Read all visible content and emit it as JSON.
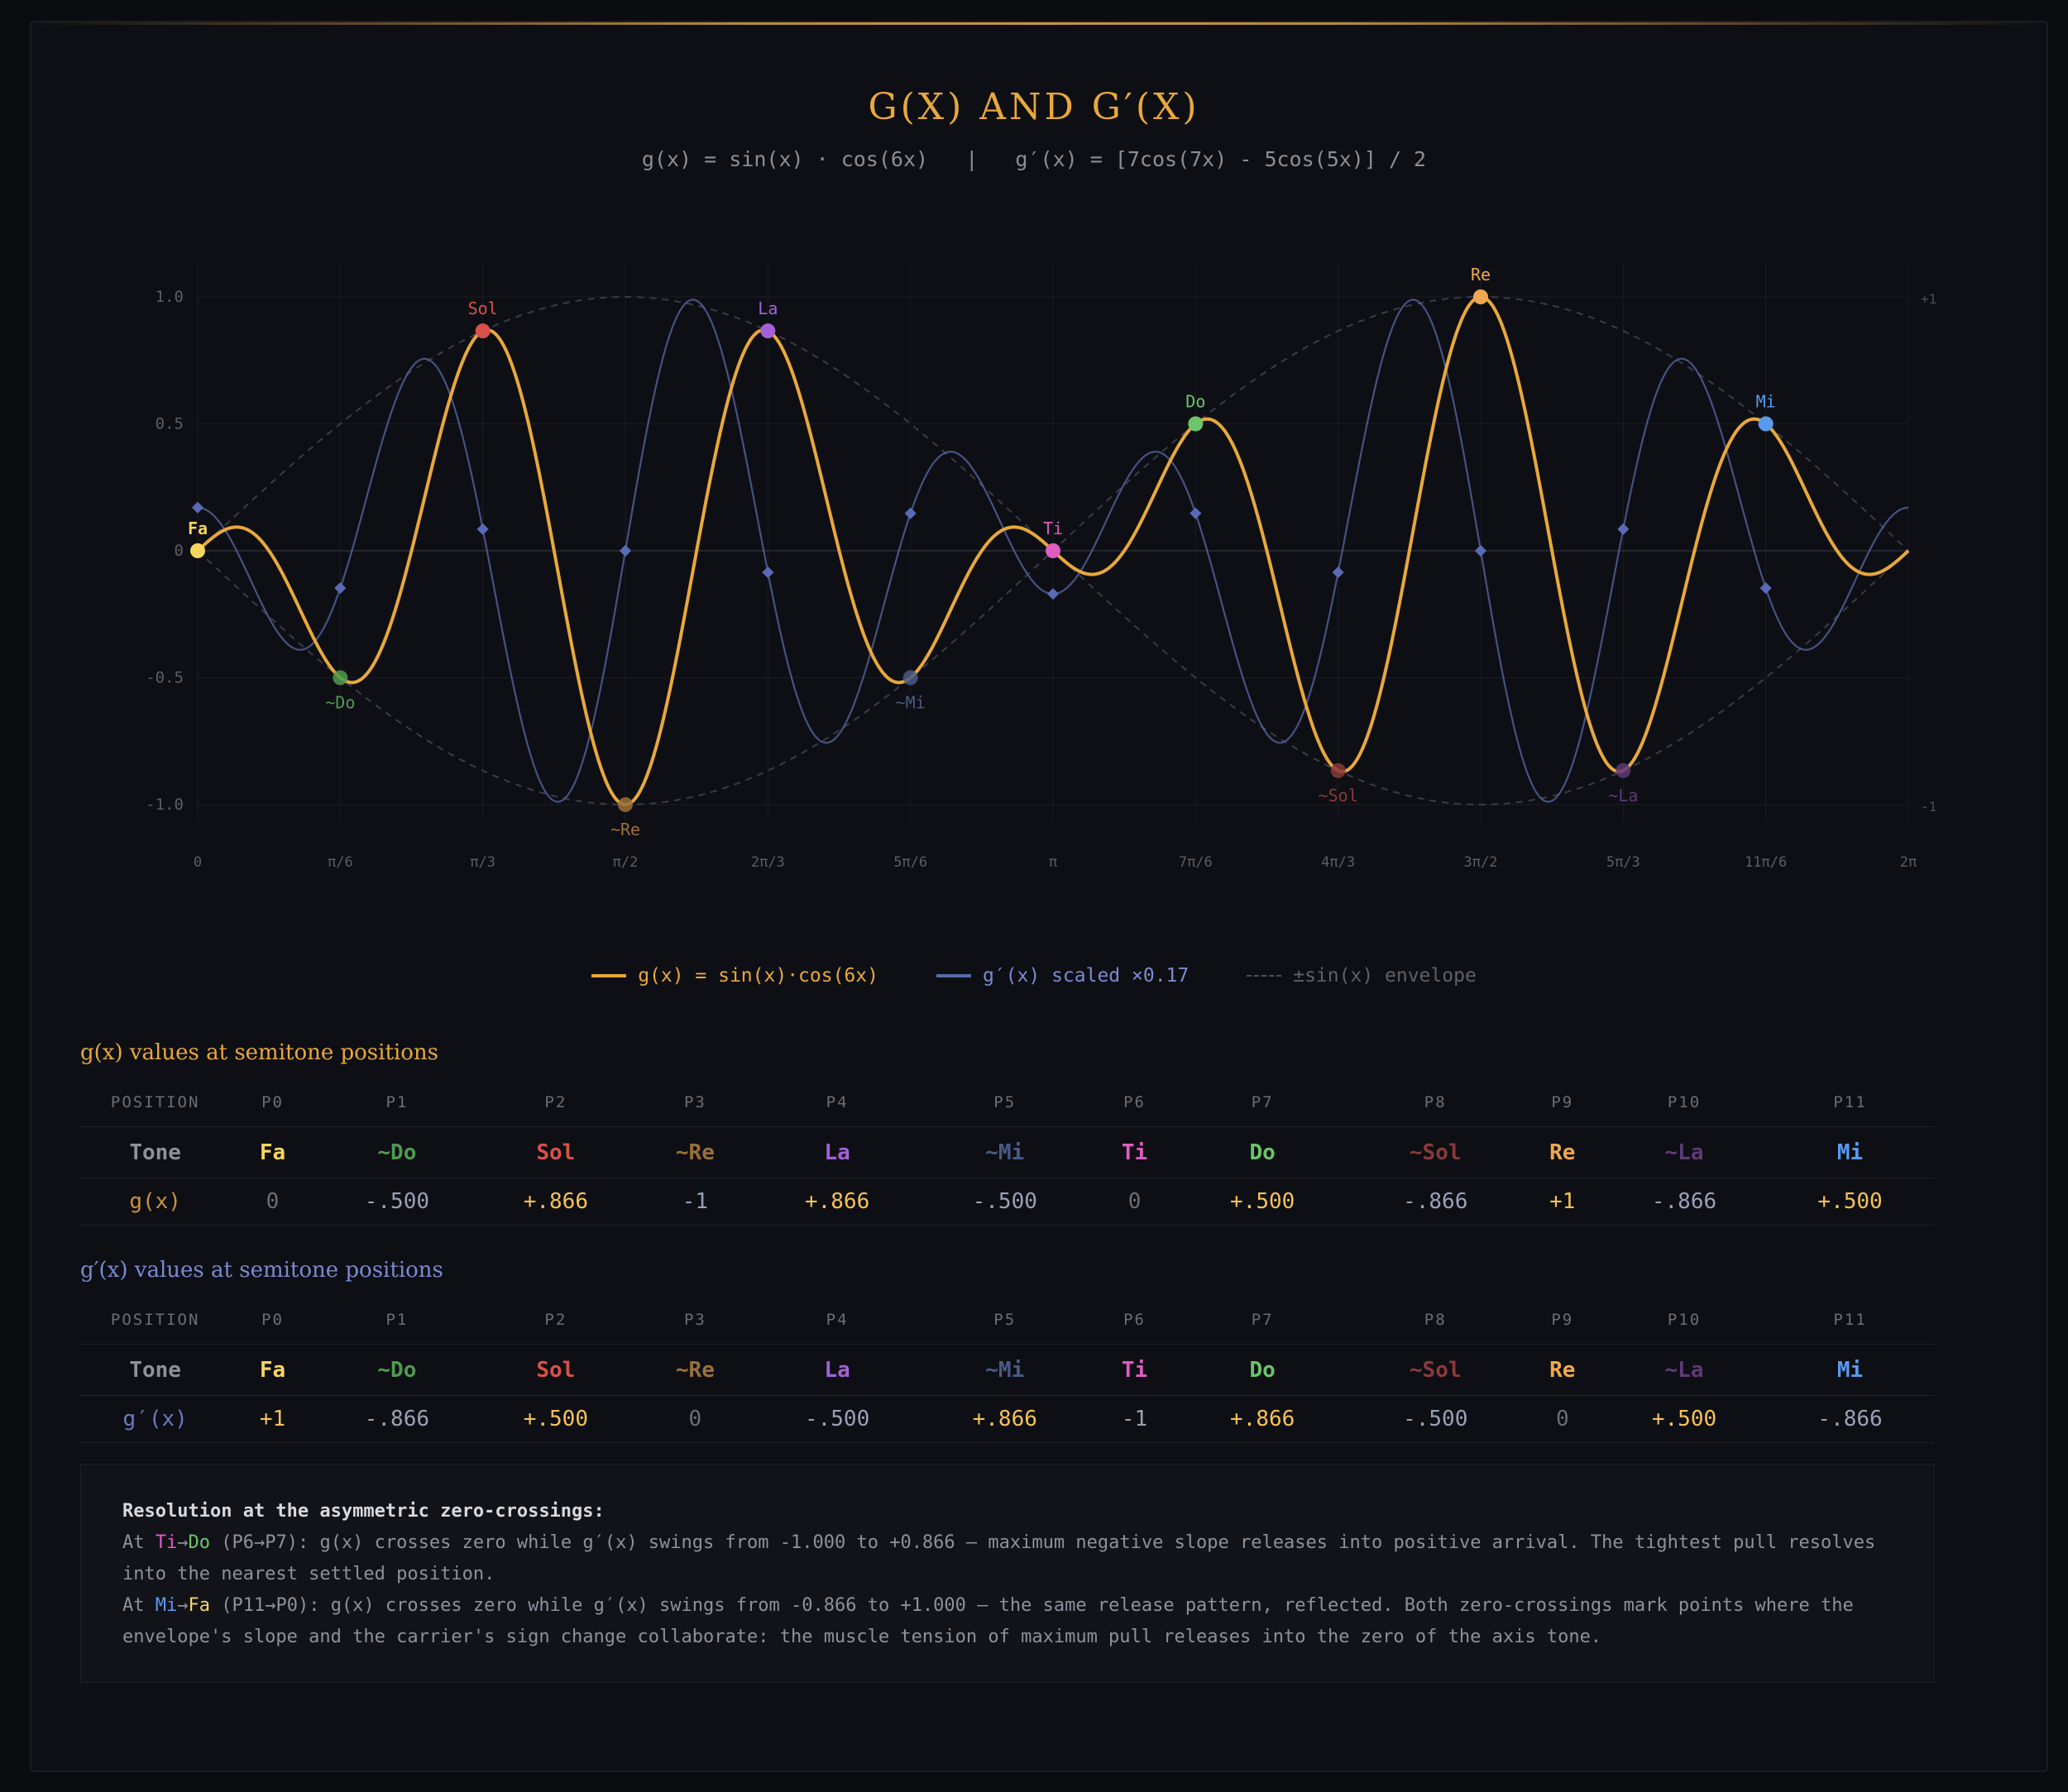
{
  "header": {
    "title": "G(X) AND G′(X)",
    "subtitle": "g(x) = sin(x) · cos(6x)   |   g′(x) = [7cos(7x) - 5cos(5x)] / 2"
  },
  "colors": {
    "g": "#e8a83c",
    "gp": "#5a6aa8",
    "envelope": "#3a3c45",
    "tones": {
      "Fa": "#f5d660",
      "~Do": "#4f9a4f",
      "Sol": "#d9514a",
      "~Re": "#9a7038",
      "La": "#a560d8",
      "~Mi": "#4a5a88",
      "Ti": "#e05cc0",
      "Do": "#6cc46c",
      "~Sol": "#8a3a3a",
      "Re": "#f0a850",
      "~La": "#5e3a78",
      "Mi": "#5a9aee"
    }
  },
  "chart_data": {
    "type": "line",
    "x_range": [
      0,
      6.2832
    ],
    "y_range": [
      -1,
      1
    ],
    "y_ticks": [
      "1.0",
      "0.5",
      "0",
      "-0.5",
      "-1.0"
    ],
    "y_tick_values": [
      1,
      0.5,
      0,
      -0.5,
      -1
    ],
    "x_tick_labels": [
      "0",
      "π/6",
      "π/3",
      "π/2",
      "2π/3",
      "5π/6",
      "π",
      "7π/6",
      "4π/3",
      "3π/2",
      "5π/3",
      "11π/6",
      "2π"
    ],
    "right_axis_ticks": [
      "+1",
      "-1"
    ],
    "grid": true,
    "series": [
      {
        "name": "g(x) = sin(x)·cos(6x)",
        "function": "sin(x)*cos(6x)"
      },
      {
        "name": "g′(x) scaled ×0.17",
        "function": "0.17*(7cos(7x)-5cos(5x))/2"
      },
      {
        "name": "±sin(x) envelope",
        "function": "±sin(x)"
      }
    ],
    "points": [
      {
        "label": "Fa",
        "x": 0,
        "y": 0,
        "gprime": 1
      },
      {
        "label": "~Do",
        "x": 0.5236,
        "y": -0.5,
        "gprime": -0.866
      },
      {
        "label": "Sol",
        "x": 1.0472,
        "y": 0.866,
        "gprime": 0.5
      },
      {
        "label": "~Re",
        "x": 1.5708,
        "y": -1,
        "gprime": 0
      },
      {
        "label": "La",
        "x": 2.0944,
        "y": 0.866,
        "gprime": -0.5
      },
      {
        "label": "~Mi",
        "x": 2.618,
        "y": -0.5,
        "gprime": 0.866
      },
      {
        "label": "Ti",
        "x": 3.1416,
        "y": 0,
        "gprime": -1
      },
      {
        "label": "Do",
        "x": 3.6652,
        "y": 0.5,
        "gprime": 0.866
      },
      {
        "label": "~Sol",
        "x": 4.1888,
        "y": -0.866,
        "gprime": -0.5
      },
      {
        "label": "Re",
        "x": 4.7124,
        "y": 1,
        "gprime": 0
      },
      {
        "label": "~La",
        "x": 5.236,
        "y": -0.866,
        "gprime": 0.5
      },
      {
        "label": "Mi",
        "x": 5.7596,
        "y": 0.5,
        "gprime": -0.866
      }
    ]
  },
  "legend": {
    "g_label": "g(x) = sin(x)·cos(6x)",
    "gp_label": "g′(x) scaled ×0.17",
    "env_label": "±sin(x) envelope"
  },
  "table_g": {
    "heading": "g(x) values at semitone positions",
    "position_label": "POSITION",
    "tone_label": "Tone",
    "value_label": "g(x)",
    "positions": [
      "P0",
      "P1",
      "P2",
      "P3",
      "P4",
      "P5",
      "P6",
      "P7",
      "P8",
      "P9",
      "P10",
      "P11"
    ],
    "tones": [
      "Fa",
      "~Do",
      "Sol",
      "~Re",
      "La",
      "~Mi",
      "Ti",
      "Do",
      "~Sol",
      "Re",
      "~La",
      "Mi"
    ],
    "values": [
      "0",
      "-.500",
      "+.866",
      "-1",
      "+.866",
      "-.500",
      "0",
      "+.500",
      "-.866",
      "+1",
      "-.866",
      "+.500"
    ]
  },
  "table_gp": {
    "heading": "g′(x) values at semitone positions",
    "position_label": "POSITION",
    "tone_label": "Tone",
    "value_label": "g′(x)",
    "positions": [
      "P0",
      "P1",
      "P2",
      "P3",
      "P4",
      "P5",
      "P6",
      "P7",
      "P8",
      "P9",
      "P10",
      "P11"
    ],
    "tones": [
      "Fa",
      "~Do",
      "Sol",
      "~Re",
      "La",
      "~Mi",
      "Ti",
      "Do",
      "~Sol",
      "Re",
      "~La",
      "Mi"
    ],
    "values": [
      "+1",
      "-.866",
      "+.500",
      "0",
      "-.500",
      "+.866",
      "-1",
      "+.866",
      "-.500",
      "0",
      "+.500",
      "-.866"
    ]
  },
  "note": {
    "heading": "Resolution at the asymmetric zero-crossings:",
    "line1_prefix": "At ",
    "line1_a": "Ti",
    "line1_arrow": "→",
    "line1_b": "Do",
    "line1_text": " (P6→P7): g(x) crosses zero while g′(x) swings from -1.000 to +0.866 — maximum negative slope releases into positive arrival. The tightest pull resolves into the nearest settled position.",
    "line2_prefix": "At ",
    "line2_a": "Mi",
    "line2_arrow": "→",
    "line2_b": "Fa",
    "line2_text": " (P11→P0): g(x) crosses zero while g′(x) swings from -0.866 to +1.000 — the same release pattern, reflected. Both zero-crossings mark points where the envelope's slope and the carrier's sign change collaborate: the muscle tension of maximum pull releases into the zero of the axis tone."
  }
}
